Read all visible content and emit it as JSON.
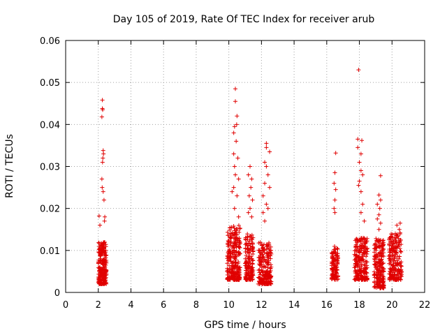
{
  "chart_data": {
    "type": "scatter",
    "title": "Day 105 of 2019, Rate Of TEC Index for receiver arub",
    "xlabel": "GPS time / hours",
    "ylabel": "ROTI / TECUs",
    "xlim": [
      0,
      22
    ],
    "ylim": [
      0,
      0.06
    ],
    "x_ticks": [
      "0",
      "2",
      "4",
      "6",
      "8",
      "10",
      "12",
      "14",
      "16",
      "18",
      "20",
      "22"
    ],
    "y_ticks": [
      "0",
      "0.01",
      "0.02",
      "0.03",
      "0.04",
      "0.05",
      "0.06"
    ],
    "grid": true,
    "marker": "+",
    "marker_color": "#e00000",
    "clusters": [
      {
        "x_range": [
          2.0,
          2.5
        ],
        "y_base": [
          0.002,
          0.012
        ],
        "n": 240,
        "spikes": [
          [
            2.25,
            0.0458
          ],
          [
            2.25,
            0.0438
          ],
          [
            2.27,
            0.0435
          ],
          [
            2.22,
            0.0418
          ],
          [
            2.3,
            0.0338
          ],
          [
            2.32,
            0.033
          ],
          [
            2.28,
            0.032
          ],
          [
            2.26,
            0.031
          ],
          [
            2.22,
            0.027
          ],
          [
            2.24,
            0.025
          ],
          [
            2.3,
            0.024
          ],
          [
            2.35,
            0.022
          ],
          [
            2.4,
            0.018
          ],
          [
            2.05,
            0.0182
          ],
          [
            2.1,
            0.016
          ],
          [
            2.38,
            0.017
          ]
        ]
      },
      {
        "x_range": [
          9.9,
          10.7
        ],
        "y_base": [
          0.003,
          0.016
        ],
        "n": 260,
        "spikes": [
          [
            10.4,
            0.0485
          ],
          [
            10.4,
            0.0455
          ],
          [
            10.5,
            0.042
          ],
          [
            10.35,
            0.0395
          ],
          [
            10.48,
            0.04
          ],
          [
            10.3,
            0.038
          ],
          [
            10.45,
            0.036
          ],
          [
            10.3,
            0.033
          ],
          [
            10.55,
            0.032
          ],
          [
            10.35,
            0.03
          ],
          [
            10.4,
            0.028
          ],
          [
            10.6,
            0.027
          ],
          [
            10.3,
            0.025
          ],
          [
            10.2,
            0.024
          ],
          [
            10.5,
            0.023
          ],
          [
            10.35,
            0.02
          ],
          [
            10.6,
            0.018
          ]
        ]
      },
      {
        "x_range": [
          11.0,
          11.5
        ],
        "y_base": [
          0.003,
          0.014
        ],
        "n": 160,
        "spikes": [
          [
            11.3,
            0.03
          ],
          [
            11.2,
            0.028
          ],
          [
            11.4,
            0.027
          ],
          [
            11.35,
            0.025
          ],
          [
            11.25,
            0.023
          ],
          [
            11.45,
            0.022
          ],
          [
            11.3,
            0.02
          ],
          [
            11.2,
            0.019
          ],
          [
            11.4,
            0.018
          ]
        ]
      },
      {
        "x_range": [
          11.8,
          12.6
        ],
        "y_base": [
          0.002,
          0.012
        ],
        "n": 220,
        "spikes": [
          [
            12.3,
            0.0355
          ],
          [
            12.3,
            0.0345
          ],
          [
            12.5,
            0.0335
          ],
          [
            12.2,
            0.031
          ],
          [
            12.3,
            0.03
          ],
          [
            12.4,
            0.028
          ],
          [
            12.2,
            0.026
          ],
          [
            12.5,
            0.025
          ],
          [
            12.1,
            0.023
          ],
          [
            12.3,
            0.021
          ],
          [
            12.4,
            0.02
          ],
          [
            12.1,
            0.019
          ],
          [
            12.2,
            0.017
          ]
        ]
      },
      {
        "x_range": [
          16.3,
          16.7
        ],
        "y_base": [
          0.003,
          0.011
        ],
        "n": 110,
        "spikes": [
          [
            16.55,
            0.0332
          ],
          [
            16.5,
            0.0285
          ],
          [
            16.45,
            0.026
          ],
          [
            16.55,
            0.0245
          ],
          [
            16.5,
            0.022
          ],
          [
            16.45,
            0.02
          ],
          [
            16.5,
            0.019
          ]
        ]
      },
      {
        "x_range": [
          17.7,
          18.5
        ],
        "y_base": [
          0.003,
          0.013
        ],
        "n": 220,
        "spikes": [
          [
            17.95,
            0.053
          ],
          [
            17.9,
            0.0365
          ],
          [
            18.15,
            0.0362
          ],
          [
            17.9,
            0.0345
          ],
          [
            18.1,
            0.033
          ],
          [
            18.0,
            0.031
          ],
          [
            18.1,
            0.029
          ],
          [
            18.2,
            0.028
          ],
          [
            18.0,
            0.0265
          ],
          [
            17.95,
            0.0255
          ],
          [
            18.1,
            0.024
          ],
          [
            18.2,
            0.021
          ],
          [
            18.1,
            0.019
          ],
          [
            18.3,
            0.017
          ]
        ]
      },
      {
        "x_range": [
          18.9,
          19.5
        ],
        "y_base": [
          0.001,
          0.013
        ],
        "n": 210,
        "spikes": [
          [
            19.3,
            0.0278
          ],
          [
            19.2,
            0.0232
          ],
          [
            19.3,
            0.022
          ],
          [
            19.1,
            0.021
          ],
          [
            19.25,
            0.02
          ],
          [
            19.2,
            0.0185
          ],
          [
            19.1,
            0.0175
          ],
          [
            19.3,
            0.0165
          ],
          [
            19.2,
            0.015
          ]
        ]
      },
      {
        "x_range": [
          19.8,
          20.6
        ],
        "y_base": [
          0.003,
          0.014
        ],
        "n": 200,
        "spikes": [
          [
            20.5,
            0.0165
          ],
          [
            20.3,
            0.016
          ],
          [
            20.45,
            0.015
          ],
          [
            20.2,
            0.014
          ],
          [
            20.5,
            0.0142
          ],
          [
            20.35,
            0.0135
          ]
        ]
      }
    ]
  }
}
